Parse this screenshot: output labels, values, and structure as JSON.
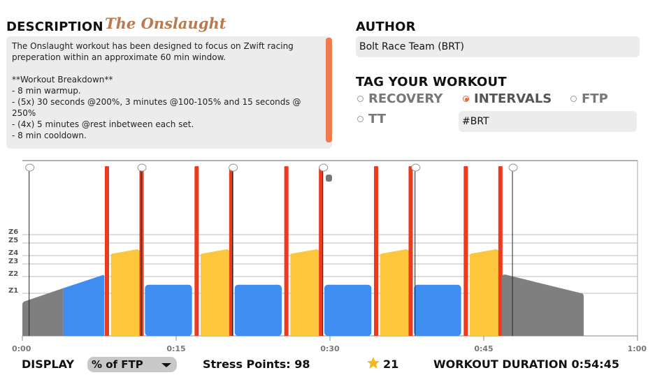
{
  "description": {
    "header": "DESCRIPTION",
    "workout_name": "The Onslaught",
    "text": "The Onslaught workout has been designed to focus on Zwift racing\npreperation within an approximate 60 min window.\n\n**Workout Breakdown**\n- 8 min warmup.\n- (5x) 30 seconds @200%, 3 minutes @100-105% and 15 seconds @\n250%\n- (4x) 5 minutes @rest inbetween each set.\n- 8 min cooldown."
  },
  "author": {
    "header": "AUTHOR",
    "value": "Bolt Race Team (BRT)"
  },
  "tags": {
    "header": "TAG YOUR WORKOUT",
    "options": [
      {
        "label": "RECOVERY",
        "selected": false
      },
      {
        "label": "INTERVALS",
        "selected": true
      },
      {
        "label": "FTP",
        "selected": false
      },
      {
        "label": "TT",
        "selected": false
      }
    ],
    "hashtag": "#BRT"
  },
  "colors": {
    "gray": "#7f7f7f",
    "blue": "#3d8ef0",
    "yellow": "#fcc73c",
    "red": "#ec3a1e",
    "accent": "#ef7a4d"
  },
  "chart": {
    "zones": [
      "Z6",
      "Z5",
      "Z4",
      "Z3",
      "Z2",
      "Z1"
    ],
    "ticks": [
      "0:00",
      "0:15",
      "0:30",
      "0:45",
      "1:00"
    ]
  },
  "footer": {
    "display_label": "DISPLAY",
    "display_value": "% of FTP",
    "stress_points": "Stress Points: 98",
    "rating": "21",
    "duration": "WORKOUT DURATION 0:54:45"
  },
  "chart_data": {
    "type": "area",
    "x_unit": "minutes",
    "xlim": [
      0,
      60
    ],
    "zones": [
      "Z1",
      "Z2",
      "Z3",
      "Z4",
      "Z5",
      "Z6"
    ],
    "segments": [
      {
        "kind": "warmup",
        "start": 0.0,
        "end": 8.0,
        "from_pct": 40,
        "to_pct": 72
      },
      {
        "kind": "interval",
        "start": 8.0,
        "end": 8.5,
        "pct": 200
      },
      {
        "kind": "interval",
        "start": 8.5,
        "end": 11.5,
        "pct": [
          100,
          105
        ]
      },
      {
        "kind": "interval",
        "start": 11.5,
        "end": 11.75,
        "pct": 250
      },
      {
        "kind": "rest",
        "start": 11.75,
        "end": 16.75,
        "pct": 60
      },
      {
        "kind": "interval",
        "start": 16.75,
        "end": 17.25,
        "pct": 200
      },
      {
        "kind": "interval",
        "start": 17.25,
        "end": 20.25,
        "pct": [
          100,
          105
        ]
      },
      {
        "kind": "interval",
        "start": 20.25,
        "end": 20.5,
        "pct": 250
      },
      {
        "kind": "rest",
        "start": 20.5,
        "end": 25.5,
        "pct": 60
      },
      {
        "kind": "interval",
        "start": 25.5,
        "end": 26.0,
        "pct": 200
      },
      {
        "kind": "interval",
        "start": 26.0,
        "end": 29.0,
        "pct": [
          100,
          105
        ]
      },
      {
        "kind": "interval",
        "start": 29.0,
        "end": 29.25,
        "pct": 250
      },
      {
        "kind": "rest",
        "start": 29.25,
        "end": 34.25,
        "pct": 60
      },
      {
        "kind": "interval",
        "start": 34.25,
        "end": 34.75,
        "pct": 200
      },
      {
        "kind": "interval",
        "start": 34.75,
        "end": 37.75,
        "pct": [
          100,
          105
        ]
      },
      {
        "kind": "interval",
        "start": 37.75,
        "end": 38.0,
        "pct": 250
      },
      {
        "kind": "rest",
        "start": 38.0,
        "end": 43.0,
        "pct": 60
      },
      {
        "kind": "interval",
        "start": 43.0,
        "end": 43.5,
        "pct": 200
      },
      {
        "kind": "interval",
        "start": 43.5,
        "end": 46.5,
        "pct": [
          100,
          105
        ]
      },
      {
        "kind": "interval",
        "start": 46.5,
        "end": 46.75,
        "pct": 250
      },
      {
        "kind": "cooldown",
        "start": 46.75,
        "end": 54.75,
        "from_pct": 72,
        "to_pct": 50
      }
    ]
  }
}
